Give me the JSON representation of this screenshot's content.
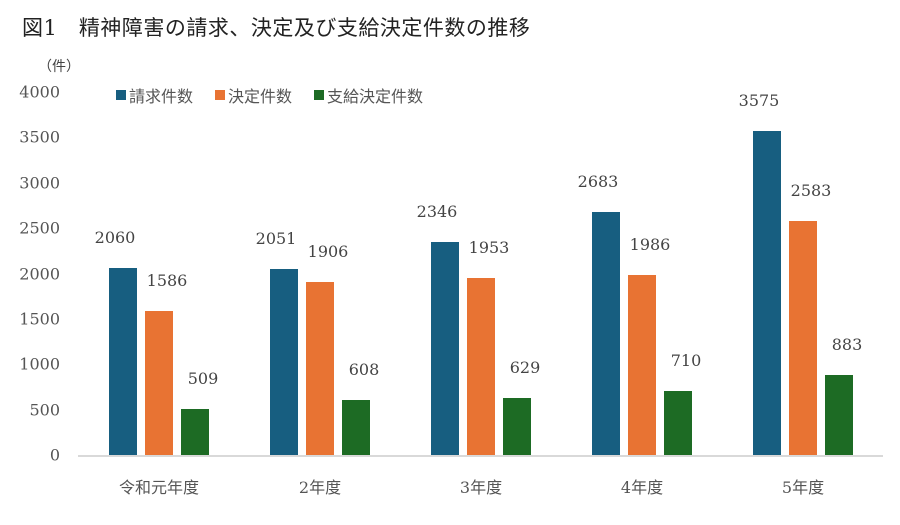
{
  "title": "図1　精神障害の請求、決定及び支給決定件数の推移",
  "unit_label": "（件）",
  "colors": {
    "claims": "#175e80",
    "decisions": "#e87333",
    "approved": "#1d6b24"
  },
  "legend": [
    {
      "label": "請求件数",
      "color": "#175e80"
    },
    {
      "label": "決定件数",
      "color": "#e87333"
    },
    {
      "label": "支給決定件数",
      "color": "#1d6b24"
    }
  ],
  "y_ticks": [
    "4000",
    "3500",
    "3000",
    "2500",
    "2000",
    "1500",
    "1000",
    "500",
    "0"
  ],
  "chart_data": {
    "type": "bar",
    "title": "図1　精神障害の請求、決定及び支給決定件数の推移",
    "xlabel": "",
    "ylabel": "（件）",
    "ylim": [
      0,
      4000
    ],
    "grid": false,
    "legend_position": "top-left",
    "categories": [
      "令和元年度",
      "2年度",
      "3年度",
      "4年度",
      "5年度"
    ],
    "series": [
      {
        "name": "請求件数",
        "color": "#175e80",
        "values": [
          2060,
          2051,
          2346,
          2683,
          3575
        ]
      },
      {
        "name": "決定件数",
        "color": "#e87333",
        "values": [
          1586,
          1906,
          1953,
          1986,
          2583
        ]
      },
      {
        "name": "支給決定件数",
        "color": "#1d6b24",
        "values": [
          509,
          608,
          629,
          710,
          883
        ]
      }
    ]
  }
}
